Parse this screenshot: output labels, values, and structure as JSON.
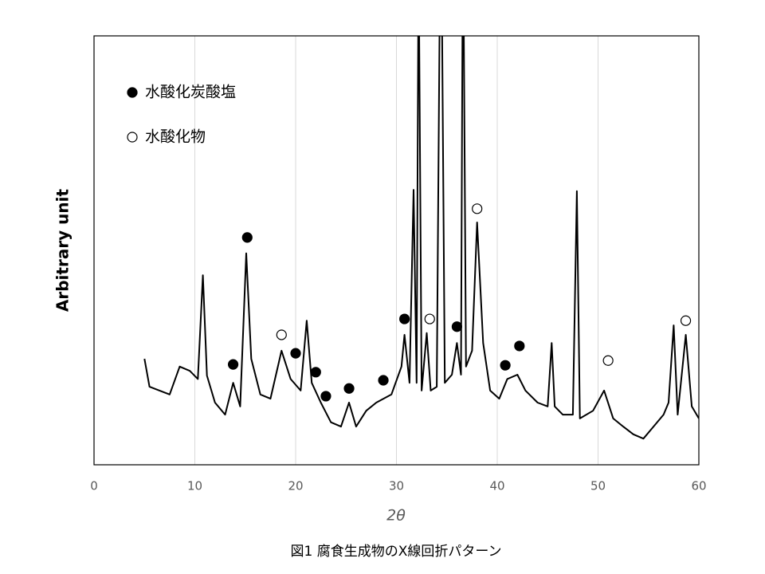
{
  "chart_data": {
    "type": "line",
    "caption": "図1 腐食生成物のX線回折パターン",
    "x_label": "2θ",
    "y_label": "Arbitrary unit",
    "xlim": [
      0,
      60
    ],
    "xticks": [
      0,
      10,
      20,
      30,
      40,
      50,
      60
    ],
    "ylim": [
      0,
      100
    ],
    "grid": true,
    "color": "#000000",
    "x": [
      5,
      5.5,
      6.5,
      7.5,
      8.5,
      9.5,
      10.3,
      10.8,
      11.2,
      12,
      13,
      13.8,
      14.5,
      15.1,
      15.6,
      16.5,
      17.5,
      18.6,
      19.5,
      20.5,
      21.1,
      21.6,
      22.5,
      23.5,
      24.5,
      25.3,
      26,
      27,
      28,
      29.5,
      30.5,
      30.8,
      31.3,
      31.7,
      32.0,
      32.2,
      32.5,
      33.0,
      33.4,
      34.0,
      34.4,
      34.8,
      35.5,
      36.0,
      36.4,
      36.6,
      36.9,
      37.5,
      38.0,
      38.6,
      39.3,
      40.2,
      41,
      42,
      42.8,
      44,
      45,
      45.4,
      45.7,
      46.5,
      47.5,
      47.9,
      48.2,
      49.5,
      50.6,
      51.5,
      52.5,
      53.5,
      54.5,
      55.5,
      56.5,
      57.0,
      57.5,
      57.9,
      58.7,
      59.3,
      60
    ],
    "values": [
      24.7,
      18.2,
      17.3,
      16.4,
      22.9,
      21.9,
      20,
      44.2,
      20.8,
      14.5,
      11.7,
      19.1,
      13.6,
      49.3,
      24.7,
      16.4,
      15.4,
      26.6,
      20,
      17.3,
      33.6,
      19.1,
      14.5,
      9.9,
      8.9,
      14.5,
      8.9,
      12.6,
      14.5,
      16.4,
      22.9,
      30.3,
      19.1,
      64.1,
      19.1,
      120,
      17.3,
      30.7,
      17.3,
      18.2,
      140,
      19.1,
      21,
      28.4,
      21,
      130,
      22.9,
      26.6,
      56.5,
      28.4,
      17.3,
      15.4,
      20,
      21,
      17.3,
      14.5,
      13.6,
      28.4,
      13.6,
      11.7,
      11.7,
      63.8,
      10.8,
      12.6,
      17.3,
      10.8,
      8.9,
      7.1,
      6.1,
      8.9,
      11.7,
      14.5,
      32.5,
      11.7,
      30.3,
      13.6,
      10.8
    ],
    "marker_series": [
      {
        "name": "水酸化炭酸塩",
        "style": "filled",
        "x": [
          13.8,
          15.2,
          20.0,
          22.0,
          23.0,
          25.3,
          28.7,
          30.8,
          36.0,
          40.8,
          42.2
        ],
        "y": [
          23.4,
          53,
          26,
          21.6,
          16,
          17.8,
          19.7,
          34,
          32.2,
          23.2,
          27.7
        ]
      },
      {
        "name": "水酸化物",
        "style": "open",
        "x": [
          18.6,
          33.3,
          38.0,
          51.0,
          58.7
        ],
        "y": [
          30.3,
          34,
          59.7,
          24.3,
          33.6
        ]
      }
    ]
  }
}
